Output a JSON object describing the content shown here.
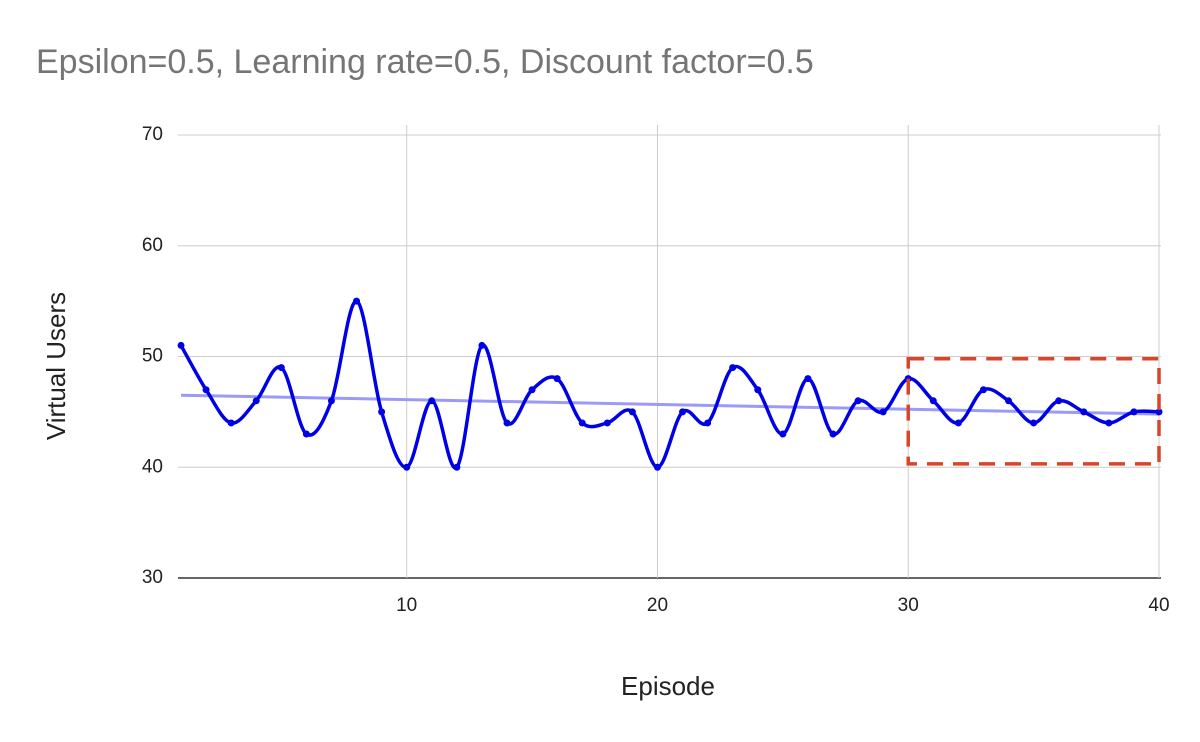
{
  "chart_data": {
    "type": "line",
    "title": "Epsilon=0.5, Learning rate=0.5, Discount factor=0.5",
    "x_label": "Episode",
    "y_label": "Virtual Users",
    "x": [
      1,
      2,
      3,
      4,
      5,
      6,
      7,
      8,
      9,
      10,
      11,
      12,
      13,
      14,
      15,
      16,
      17,
      18,
      19,
      20,
      21,
      22,
      23,
      24,
      25,
      26,
      27,
      28,
      29,
      30,
      31,
      32,
      33,
      34,
      35,
      36,
      37,
      38,
      39,
      40
    ],
    "series": [
      {
        "color": "#0000e6",
        "values": [
          51,
          47,
          44,
          46,
          49,
          43,
          46,
          55,
          45,
          40,
          46,
          40,
          51,
          44,
          47,
          48,
          44,
          44,
          45,
          40,
          45,
          44,
          49,
          47,
          43,
          48,
          43,
          46,
          45,
          48,
          46,
          44,
          47,
          46,
          44,
          46,
          45,
          44,
          45,
          45
        ]
      }
    ],
    "trendline": {
      "color": "#9a9af7",
      "x": [
        1,
        40
      ],
      "values": [
        46.5,
        44.8
      ]
    },
    "highlight": {
      "color": "#d9452b",
      "x": [
        30,
        40
      ],
      "y": [
        40.3,
        49.8
      ]
    },
    "xlim": [
      1,
      40
    ],
    "xticks": [
      10,
      20,
      30,
      40
    ],
    "ylim": [
      30,
      70
    ],
    "yticks": [
      30,
      40,
      50,
      60,
      70
    ],
    "grid": true,
    "smooth": true
  }
}
